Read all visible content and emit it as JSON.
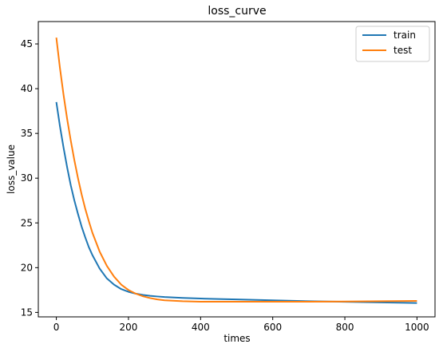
{
  "chart_data": {
    "type": "line",
    "title": "loss_curve",
    "xlabel": "times",
    "ylabel": "loss_value",
    "xlim": [
      -50,
      1050
    ],
    "ylim": [
      14.5,
      47.5
    ],
    "xticks": [
      0,
      200,
      400,
      600,
      800,
      1000
    ],
    "yticks": [
      15,
      20,
      25,
      30,
      35,
      40,
      45
    ],
    "grid": false,
    "legend_position": "top-right",
    "series": [
      {
        "name": "train",
        "color": "#1f77b4",
        "x": [
          0,
          10,
          20,
          30,
          40,
          50,
          60,
          70,
          80,
          90,
          100,
          120,
          140,
          160,
          180,
          200,
          220,
          240,
          260,
          280,
          300,
          350,
          400,
          450,
          500,
          600,
          700,
          800,
          900,
          1000
        ],
        "y": [
          38.5,
          35.8,
          33.4,
          31.2,
          29.2,
          27.5,
          26.0,
          24.6,
          23.4,
          22.3,
          21.4,
          19.9,
          18.8,
          18.1,
          17.6,
          17.3,
          17.1,
          16.95,
          16.85,
          16.78,
          16.72,
          16.62,
          16.55,
          16.5,
          16.45,
          16.35,
          16.25,
          16.18,
          16.12,
          16.05
        ]
      },
      {
        "name": "test",
        "color": "#ff7f0e",
        "x": [
          0,
          10,
          20,
          30,
          40,
          50,
          60,
          70,
          80,
          90,
          100,
          120,
          140,
          160,
          180,
          200,
          220,
          240,
          260,
          280,
          300,
          350,
          400,
          450,
          500,
          600,
          700,
          800,
          900,
          1000
        ],
        "y": [
          45.7,
          42.3,
          39.3,
          36.6,
          34.2,
          32.0,
          30.0,
          28.2,
          26.6,
          25.2,
          23.9,
          21.8,
          20.2,
          19.0,
          18.1,
          17.5,
          17.1,
          16.8,
          16.6,
          16.45,
          16.35,
          16.25,
          16.2,
          16.2,
          16.2,
          16.2,
          16.2,
          16.22,
          16.25,
          16.28
        ]
      }
    ]
  }
}
